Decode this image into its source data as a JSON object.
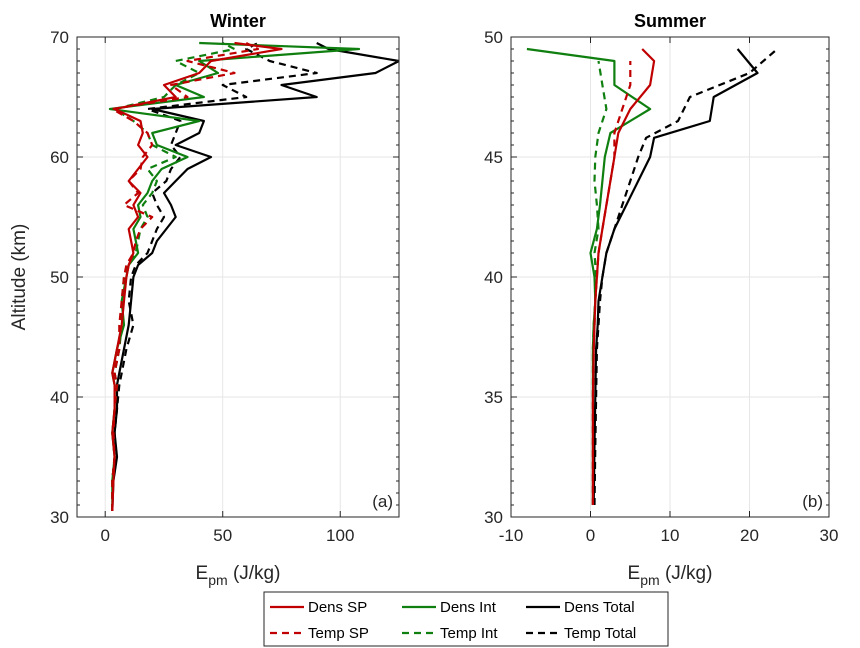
{
  "colors": {
    "sp": "#c00000",
    "int": "#0f7f0f",
    "total": "#000000"
  },
  "chart_data": [
    {
      "type": "line",
      "title": "Winter",
      "panel_label": "(a)",
      "ylabel": "Altitude (km)",
      "xlabel_base": "E",
      "xlabel_sub": "pm",
      "xlabel_unit": " (J/kg)",
      "xlim": [
        -12,
        125
      ],
      "ylim": [
        30,
        70
      ],
      "xticks": [
        0,
        50,
        100
      ],
      "yticks": [
        30,
        40,
        50,
        60,
        70
      ],
      "xtick_labels": [
        "0",
        "50",
        "100"
      ],
      "ytick_labels": [
        "30",
        "40",
        "50",
        "60",
        "70"
      ],
      "grid": true,
      "series": [
        {
          "name": "Dens SP",
          "style": "solid",
          "color": "sp",
          "y": [
            30.5,
            33,
            35,
            37,
            39,
            41,
            42,
            44,
            46,
            48,
            50,
            51,
            52,
            53,
            54,
            55,
            56,
            57,
            58,
            59,
            60,
            61,
            62,
            63,
            64,
            65,
            66,
            67,
            68,
            69,
            69.5
          ],
          "x": [
            3,
            3.5,
            4,
            3,
            4,
            4,
            3,
            5,
            7,
            8,
            9,
            10,
            12,
            11,
            10,
            14,
            12,
            15,
            10,
            14,
            18,
            14,
            16,
            15,
            4,
            30,
            25,
            40,
            45,
            75,
            55
          ]
        },
        {
          "name": "Temp SP",
          "style": "dashed",
          "color": "sp",
          "y": [
            30.5,
            33,
            35,
            37,
            39,
            41,
            42,
            44,
            46,
            48,
            50,
            51,
            52,
            53,
            54,
            55,
            56,
            57,
            58,
            59,
            60,
            61,
            62,
            63,
            64,
            65,
            66,
            67,
            68,
            69,
            69.5
          ],
          "x": [
            3,
            3,
            4,
            3.5,
            4,
            5,
            4,
            6,
            6,
            7,
            8,
            9,
            12,
            13,
            15,
            20,
            8,
            14,
            10,
            15,
            16,
            20,
            18,
            12,
            3,
            35,
            28,
            55,
            35,
            65,
            60
          ]
        },
        {
          "name": "Dens Int",
          "style": "solid",
          "color": "int",
          "y": [
            30.5,
            33,
            35,
            37,
            39,
            41,
            42,
            44,
            46,
            48,
            50,
            51,
            52,
            53,
            54,
            55,
            56,
            57,
            58,
            59,
            60,
            61,
            62,
            63,
            64,
            65,
            66,
            67,
            68,
            69,
            69.5
          ],
          "x": [
            3,
            3,
            4,
            3,
            4,
            4,
            3,
            5,
            8,
            7,
            9,
            10,
            14,
            13,
            12,
            15,
            14,
            18,
            20,
            24,
            35,
            22,
            20,
            40,
            2,
            42,
            30,
            48,
            40,
            108,
            40
          ]
        },
        {
          "name": "Temp Int",
          "style": "dashed",
          "color": "int",
          "y": [
            30.5,
            33,
            35,
            37,
            39,
            41,
            42,
            44,
            46,
            48,
            50,
            51,
            52,
            53,
            54,
            55,
            56,
            57,
            58,
            59,
            60,
            61,
            62,
            63,
            64,
            65,
            66,
            67,
            68,
            69,
            69.5
          ],
          "x": [
            3,
            3,
            4,
            3,
            4,
            5,
            4,
            6,
            7,
            7,
            8,
            10,
            13,
            14,
            15,
            18,
            16,
            20,
            22,
            18,
            30,
            20,
            18,
            12,
            4,
            25,
            30,
            40,
            30,
            55,
            50
          ]
        },
        {
          "name": "Dens Total",
          "style": "solid",
          "color": "total",
          "y": [
            30.5,
            33,
            35,
            37,
            39,
            41,
            42,
            44,
            46,
            48,
            50,
            51,
            52,
            53,
            54,
            55,
            56,
            57,
            58,
            59,
            60,
            61,
            62,
            63,
            64,
            65,
            66,
            67,
            68,
            69,
            69.5
          ],
          "x": [
            3,
            3.5,
            5,
            4,
            5,
            5,
            6,
            8,
            10,
            11,
            12,
            14,
            20,
            22,
            26,
            30,
            28,
            25,
            30,
            35,
            45,
            30,
            40,
            42,
            20,
            90,
            75,
            115,
            125,
            95,
            90
          ]
        },
        {
          "name": "Temp Total",
          "style": "dashed",
          "color": "total",
          "y": [
            30.5,
            33,
            35,
            37,
            39,
            41,
            42,
            44,
            46,
            48,
            50,
            51,
            52,
            53,
            54,
            55,
            56,
            57,
            58,
            59,
            60,
            61,
            62,
            63,
            64,
            65,
            66,
            67,
            68,
            69,
            69.5
          ],
          "x": [
            3,
            3,
            4,
            4,
            5,
            6,
            7,
            9,
            12,
            10,
            11,
            13,
            18,
            20,
            22,
            25,
            22,
            20,
            26,
            28,
            32,
            28,
            30,
            32,
            18,
            60,
            50,
            90,
            70,
            60,
            65
          ]
        }
      ]
    },
    {
      "type": "line",
      "title": "Summer",
      "panel_label": "(b)",
      "ylabel": "",
      "xlabel_base": "E",
      "xlabel_sub": "pm",
      "xlabel_unit": " (J/kg)",
      "xlim": [
        -10,
        30
      ],
      "ylim": [
        30,
        50
      ],
      "xticks": [
        -10,
        0,
        10,
        20,
        30
      ],
      "yticks": [
        30,
        35,
        40,
        45,
        50
      ],
      "xtick_labels": [
        "-10",
        "0",
        "10",
        "20",
        "30"
      ],
      "ytick_labels": [
        "30",
        "35",
        "40",
        "45",
        "50"
      ],
      "grid": true,
      "series": [
        {
          "name": "Dens SP",
          "style": "solid",
          "color": "sp",
          "y": [
            30.5,
            33,
            35,
            37,
            38,
            39,
            40,
            41,
            42,
            43,
            44,
            45,
            46,
            47,
            48,
            49,
            49.5
          ],
          "x": [
            0.3,
            0.3,
            0.3,
            0.4,
            0.5,
            0.6,
            0.8,
            1,
            1.5,
            2,
            2.5,
            3,
            3.5,
            5,
            7.5,
            8,
            6.5
          ]
        },
        {
          "name": "Temp SP",
          "style": "dashed",
          "color": "sp",
          "y": [
            30.5,
            33,
            35,
            37,
            38,
            39,
            40,
            41,
            42,
            43,
            44,
            45,
            46,
            47,
            48,
            49
          ],
          "x": [
            0.3,
            0.3,
            0.3,
            0.4,
            0.5,
            0.6,
            0.8,
            1,
            1.5,
            2,
            2.5,
            3,
            3,
            4,
            5,
            5
          ]
        },
        {
          "name": "Dens Int",
          "style": "solid",
          "color": "int",
          "y": [
            30.5,
            33,
            35,
            37,
            38,
            39,
            40,
            41,
            42,
            43,
            44,
            45,
            46,
            47,
            48,
            49,
            49.5
          ],
          "x": [
            0.3,
            0.3,
            0.3,
            0.3,
            0.4,
            0.6,
            0.5,
            0,
            0.8,
            1.2,
            1.5,
            1.8,
            2.5,
            7.5,
            3,
            3,
            -8
          ]
        },
        {
          "name": "Temp Int",
          "style": "dashed",
          "color": "int",
          "y": [
            30.5,
            33,
            35,
            37,
            38,
            39,
            40,
            41,
            42,
            43,
            44,
            45,
            46,
            47,
            48,
            49
          ],
          "x": [
            0.3,
            0.3,
            0.3,
            0.3,
            0.4,
            0.6,
            0.7,
            0.5,
            1,
            0.8,
            0.5,
            0.6,
            1,
            2,
            1.5,
            1
          ]
        },
        {
          "name": "Dens Total",
          "style": "solid",
          "color": "total",
          "y": [
            30.5,
            33,
            35,
            37,
            38,
            39,
            40,
            41,
            42,
            43,
            44,
            45,
            45.8,
            46.5,
            47.5,
            48.5,
            49.5
          ],
          "x": [
            0.4,
            0.5,
            0.6,
            0.7,
            0.9,
            1,
            1.5,
            2,
            3,
            4.5,
            6,
            7.5,
            8,
            15,
            15.5,
            21,
            18.5
          ]
        },
        {
          "name": "Temp Total",
          "style": "dashed",
          "color": "total",
          "y": [
            30.5,
            33,
            35,
            37,
            38,
            39,
            40,
            41,
            42,
            43,
            44,
            45,
            45.8,
            46.5,
            47.5,
            48.5,
            49.5
          ],
          "x": [
            0.5,
            0.6,
            0.7,
            0.8,
            1,
            1.2,
            1.5,
            2,
            3,
            4,
            5,
            6,
            7,
            11,
            12.5,
            20,
            23.5
          ]
        }
      ]
    }
  ],
  "legend": {
    "entries": [
      {
        "label": "Dens SP",
        "style": "solid",
        "color": "sp"
      },
      {
        "label": "Dens Int",
        "style": "solid",
        "color": "int"
      },
      {
        "label": "Dens Total",
        "style": "solid",
        "color": "total"
      },
      {
        "label": "Temp SP",
        "style": "dashed",
        "color": "sp"
      },
      {
        "label": "Temp Int",
        "style": "dashed",
        "color": "int"
      },
      {
        "label": "Temp Total",
        "style": "dashed",
        "color": "total"
      }
    ]
  }
}
